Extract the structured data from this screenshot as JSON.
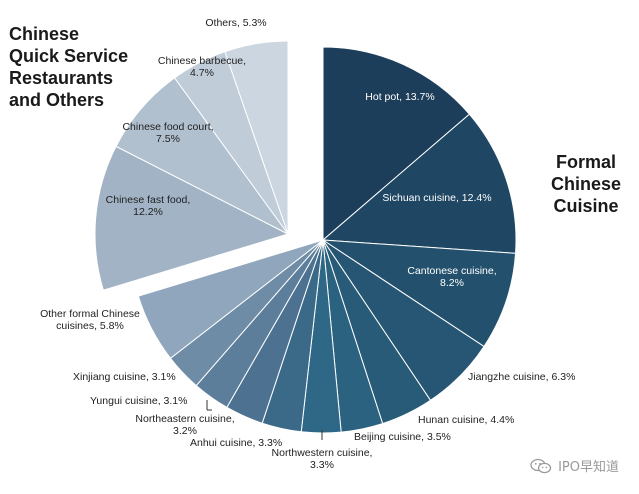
{
  "chart_data": {
    "type": "pie",
    "group_titles": {
      "left": [
        "Chinese",
        "Quick Service",
        "Restaurants",
        "and Others"
      ],
      "right": [
        "Formal",
        "Chinese",
        "Cuisine"
      ]
    },
    "slices": [
      {
        "label": "Hot pot, 13.7%",
        "value": 13.7,
        "color": "#1d3e5b",
        "text_color": "#ffffff"
      },
      {
        "label": "Sichuan cuisine, 12.4%",
        "value": 12.4,
        "color": "#1f4663",
        "text_color": "#ffffff"
      },
      {
        "label": "Cantonese cuisine, 8.2%",
        "value": 8.2,
        "color": "#23506c",
        "text_color": "#ffffff"
      },
      {
        "label": "Jiangzhe cuisine, 6.3%",
        "value": 6.3,
        "color": "#265673",
        "text_color": "#222222"
      },
      {
        "label": "Hunan cuisine, 4.4%",
        "value": 4.4,
        "color": "#285b77",
        "text_color": "#222222"
      },
      {
        "label": "Beijing cuisine, 3.5%",
        "value": 3.5,
        "color": "#2b6280",
        "text_color": "#222222"
      },
      {
        "label": "Northwestern cuisine, 3.3%",
        "value": 3.3,
        "color": "#2f6887",
        "text_color": "#222222"
      },
      {
        "label": "Anhui cuisine, 3.3%",
        "value": 3.3,
        "color": "#3a6a88",
        "text_color": "#222222"
      },
      {
        "label": "Northeastern cuisine, 3.2%",
        "value": 3.2,
        "color": "#4d7291",
        "text_color": "#222222"
      },
      {
        "label": "Yungui cuisine, 3.1%",
        "value": 3.1,
        "color": "#5d7e9b",
        "text_color": "#222222"
      },
      {
        "label": "Xinjiang cuisine, 3.1%",
        "value": 3.1,
        "color": "#6e8ca6",
        "text_color": "#222222"
      },
      {
        "label": "Other formal Chinese cuisines, 5.8%",
        "value": 5.8,
        "color": "#8fa6bc",
        "text_color": "#222222"
      },
      {
        "label": "Chinese fast food, 12.2%",
        "value": 12.2,
        "color": "#a1b3c5",
        "text_color": "#222222"
      },
      {
        "label": "Chinese food court, 7.5%",
        "value": 7.5,
        "color": "#b1c0cf",
        "text_color": "#222222"
      },
      {
        "label": "Chinese barbecue, 4.7%",
        "value": 4.7,
        "color": "#c0ccd8",
        "text_color": "#222222"
      },
      {
        "label": "Others, 5.3%",
        "value": 5.3,
        "color": "#ccd6e0",
        "text_color": "#222222"
      }
    ],
    "exploded_group": [
      "Chinese fast food, 12.2%",
      "Chinese food court, 7.5%",
      "Chinese barbecue, 4.7%",
      "Others, 5.3%"
    ]
  },
  "watermark": {
    "text": "IPO早知道",
    "icon": "wechat-icon"
  }
}
